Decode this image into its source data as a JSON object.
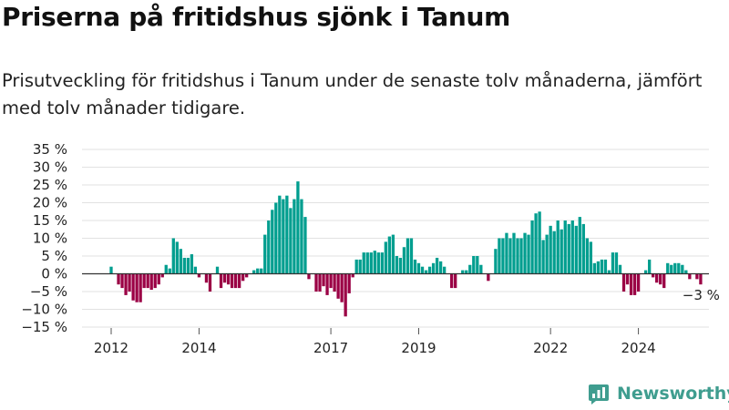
{
  "chart_data": {
    "type": "bar",
    "title": "Priserna på fritidshus sjönk i Tanum",
    "subtitle": "Prisutveckling för fritidshus i Tanum under de senaste tolv månaderna, jämfört med tolv månader tidigare.",
    "ylabel": "",
    "xlabel": "",
    "unit": "%",
    "ylim": [
      -15,
      35
    ],
    "y_ticks": [
      35,
      30,
      25,
      20,
      15,
      10,
      5,
      0,
      -5,
      -10,
      -15
    ],
    "y_tick_labels": [
      "35 %",
      "30 %",
      "25 %",
      "20 %",
      "15 %",
      "10 %",
      "5 %",
      "0 %",
      "−5 %",
      "−10 %",
      "−15 %"
    ],
    "x_start": "2012-01",
    "x_ticks": [
      {
        "label": "2012",
        "month": "2012-01"
      },
      {
        "label": "2014",
        "month": "2014-01"
      },
      {
        "label": "2017",
        "month": "2017-01"
      },
      {
        "label": "2019",
        "month": "2019-01"
      },
      {
        "label": "2022",
        "month": "2022-01"
      },
      {
        "label": "2024",
        "month": "2024-01"
      }
    ],
    "positive_color": "#009e8f",
    "negative_color": "#9b0045",
    "grid": true,
    "last_value_label": "−3 %",
    "values": [
      2,
      0,
      -3,
      -4,
      -6,
      -5,
      -7.5,
      -8,
      -8,
      -4,
      -4,
      -4.5,
      -4,
      -3,
      -1,
      2.5,
      1.5,
      10,
      9,
      7,
      4.5,
      4.5,
      5.5,
      2,
      -1,
      0,
      -2.5,
      -5,
      0,
      2,
      -4,
      -2.5,
      -3,
      -4,
      -4,
      -4,
      -2,
      -1,
      0,
      1,
      1.5,
      1.5,
      11,
      15,
      18,
      20,
      22,
      21,
      22,
      18.5,
      21,
      26,
      21,
      16,
      -1.5,
      0,
      -5,
      -5,
      -3.5,
      -6,
      -4,
      -5,
      -7,
      -8,
      -12,
      -5.5,
      -1,
      4,
      4,
      6,
      6,
      6,
      6.5,
      6,
      6,
      9,
      10.5,
      11,
      5,
      4.5,
      7.5,
      10,
      10,
      4,
      3,
      2,
      1,
      2,
      3,
      4.5,
      3.5,
      2,
      0,
      -4,
      -4,
      0,
      1,
      1,
      2.5,
      5,
      5,
      2.5,
      0,
      -2,
      0,
      7,
      10,
      10,
      11.5,
      10,
      11.5,
      10,
      10,
      11.5,
      11,
      15,
      17,
      17.5,
      9.5,
      11,
      13.5,
      12,
      15,
      12.5,
      15,
      14,
      15,
      13.5,
      16,
      14,
      10,
      9,
      3,
      3.5,
      4,
      4,
      1,
      6,
      6,
      2.5,
      -5,
      -3,
      -6,
      -6,
      -5,
      0,
      1,
      4,
      -1,
      -2.5,
      -3,
      -4,
      3,
      2.5,
      3,
      3,
      2.5,
      1,
      -1.5,
      0,
      -1.5,
      -3
    ]
  },
  "brand": {
    "name": "Newsworthy",
    "icon": "newsworthy-logo-icon",
    "color": "#3f9d8f"
  }
}
